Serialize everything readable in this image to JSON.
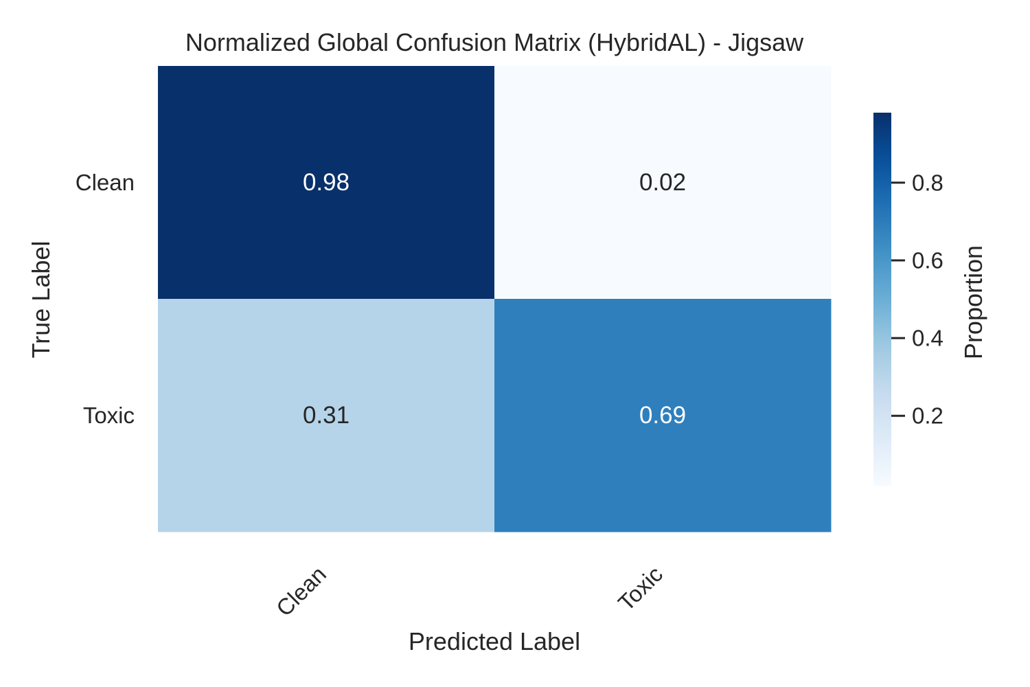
{
  "chart_data": {
    "type": "heatmap",
    "title": "Normalized Global Confusion Matrix (HybridAL) - Jigsaw",
    "xlabel": "Predicted Label",
    "ylabel": "True Label",
    "x_categories": [
      "Clean",
      "Toxic"
    ],
    "y_categories": [
      "Clean",
      "Toxic"
    ],
    "values": [
      [
        0.98,
        0.02
      ],
      [
        0.31,
        0.69
      ]
    ],
    "annotations": [
      [
        "0.98",
        "0.02"
      ],
      [
        "0.31",
        "0.69"
      ]
    ],
    "colormap": "Blues",
    "colorbar": {
      "label": "Proportion",
      "range": [
        0.02,
        0.98
      ],
      "ticks": [
        0.2,
        0.4,
        0.6,
        0.8
      ],
      "tick_labels": [
        "0.2",
        "0.4",
        "0.6",
        "0.8"
      ]
    },
    "colors": {
      "min": "#f7fbff",
      "max": "#08306b",
      "text_dark": "#262626",
      "text_light": "#ffffff"
    },
    "grid": false
  }
}
